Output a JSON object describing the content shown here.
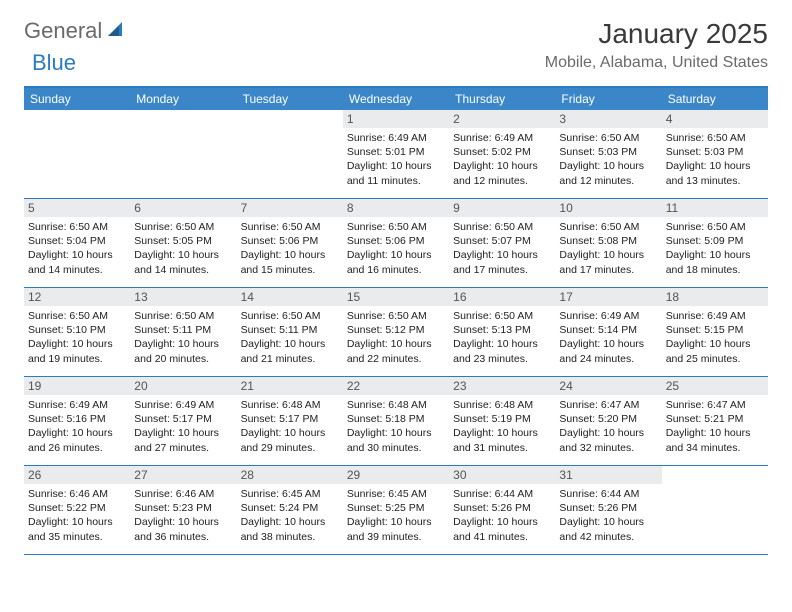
{
  "logo": {
    "general": "General",
    "blue": "Blue"
  },
  "title": "January 2025",
  "location": "Mobile, Alabama, United States",
  "colors": {
    "header_bar": "#3b86c8",
    "border": "#2b7bbf",
    "daynum_bg": "#e9ebed",
    "logo_gray": "#6a6a6a",
    "logo_blue": "#2b7bbf"
  },
  "weekdays": [
    "Sunday",
    "Monday",
    "Tuesday",
    "Wednesday",
    "Thursday",
    "Friday",
    "Saturday"
  ],
  "weeks": [
    [
      {
        "n": "",
        "sr": "",
        "ss": "",
        "dl": ""
      },
      {
        "n": "",
        "sr": "",
        "ss": "",
        "dl": ""
      },
      {
        "n": "",
        "sr": "",
        "ss": "",
        "dl": ""
      },
      {
        "n": "1",
        "sr": "6:49 AM",
        "ss": "5:01 PM",
        "dl": "10 hours and 11 minutes."
      },
      {
        "n": "2",
        "sr": "6:49 AM",
        "ss": "5:02 PM",
        "dl": "10 hours and 12 minutes."
      },
      {
        "n": "3",
        "sr": "6:50 AM",
        "ss": "5:03 PM",
        "dl": "10 hours and 12 minutes."
      },
      {
        "n": "4",
        "sr": "6:50 AM",
        "ss": "5:03 PM",
        "dl": "10 hours and 13 minutes."
      }
    ],
    [
      {
        "n": "5",
        "sr": "6:50 AM",
        "ss": "5:04 PM",
        "dl": "10 hours and 14 minutes."
      },
      {
        "n": "6",
        "sr": "6:50 AM",
        "ss": "5:05 PM",
        "dl": "10 hours and 14 minutes."
      },
      {
        "n": "7",
        "sr": "6:50 AM",
        "ss": "5:06 PM",
        "dl": "10 hours and 15 minutes."
      },
      {
        "n": "8",
        "sr": "6:50 AM",
        "ss": "5:06 PM",
        "dl": "10 hours and 16 minutes."
      },
      {
        "n": "9",
        "sr": "6:50 AM",
        "ss": "5:07 PM",
        "dl": "10 hours and 17 minutes."
      },
      {
        "n": "10",
        "sr": "6:50 AM",
        "ss": "5:08 PM",
        "dl": "10 hours and 17 minutes."
      },
      {
        "n": "11",
        "sr": "6:50 AM",
        "ss": "5:09 PM",
        "dl": "10 hours and 18 minutes."
      }
    ],
    [
      {
        "n": "12",
        "sr": "6:50 AM",
        "ss": "5:10 PM",
        "dl": "10 hours and 19 minutes."
      },
      {
        "n": "13",
        "sr": "6:50 AM",
        "ss": "5:11 PM",
        "dl": "10 hours and 20 minutes."
      },
      {
        "n": "14",
        "sr": "6:50 AM",
        "ss": "5:11 PM",
        "dl": "10 hours and 21 minutes."
      },
      {
        "n": "15",
        "sr": "6:50 AM",
        "ss": "5:12 PM",
        "dl": "10 hours and 22 minutes."
      },
      {
        "n": "16",
        "sr": "6:50 AM",
        "ss": "5:13 PM",
        "dl": "10 hours and 23 minutes."
      },
      {
        "n": "17",
        "sr": "6:49 AM",
        "ss": "5:14 PM",
        "dl": "10 hours and 24 minutes."
      },
      {
        "n": "18",
        "sr": "6:49 AM",
        "ss": "5:15 PM",
        "dl": "10 hours and 25 minutes."
      }
    ],
    [
      {
        "n": "19",
        "sr": "6:49 AM",
        "ss": "5:16 PM",
        "dl": "10 hours and 26 minutes."
      },
      {
        "n": "20",
        "sr": "6:49 AM",
        "ss": "5:17 PM",
        "dl": "10 hours and 27 minutes."
      },
      {
        "n": "21",
        "sr": "6:48 AM",
        "ss": "5:17 PM",
        "dl": "10 hours and 29 minutes."
      },
      {
        "n": "22",
        "sr": "6:48 AM",
        "ss": "5:18 PM",
        "dl": "10 hours and 30 minutes."
      },
      {
        "n": "23",
        "sr": "6:48 AM",
        "ss": "5:19 PM",
        "dl": "10 hours and 31 minutes."
      },
      {
        "n": "24",
        "sr": "6:47 AM",
        "ss": "5:20 PM",
        "dl": "10 hours and 32 minutes."
      },
      {
        "n": "25",
        "sr": "6:47 AM",
        "ss": "5:21 PM",
        "dl": "10 hours and 34 minutes."
      }
    ],
    [
      {
        "n": "26",
        "sr": "6:46 AM",
        "ss": "5:22 PM",
        "dl": "10 hours and 35 minutes."
      },
      {
        "n": "27",
        "sr": "6:46 AM",
        "ss": "5:23 PM",
        "dl": "10 hours and 36 minutes."
      },
      {
        "n": "28",
        "sr": "6:45 AM",
        "ss": "5:24 PM",
        "dl": "10 hours and 38 minutes."
      },
      {
        "n": "29",
        "sr": "6:45 AM",
        "ss": "5:25 PM",
        "dl": "10 hours and 39 minutes."
      },
      {
        "n": "30",
        "sr": "6:44 AM",
        "ss": "5:26 PM",
        "dl": "10 hours and 41 minutes."
      },
      {
        "n": "31",
        "sr": "6:44 AM",
        "ss": "5:26 PM",
        "dl": "10 hours and 42 minutes."
      },
      {
        "n": "",
        "sr": "",
        "ss": "",
        "dl": ""
      }
    ]
  ],
  "labels": {
    "sunrise": "Sunrise:",
    "sunset": "Sunset:",
    "daylight": "Daylight:"
  }
}
